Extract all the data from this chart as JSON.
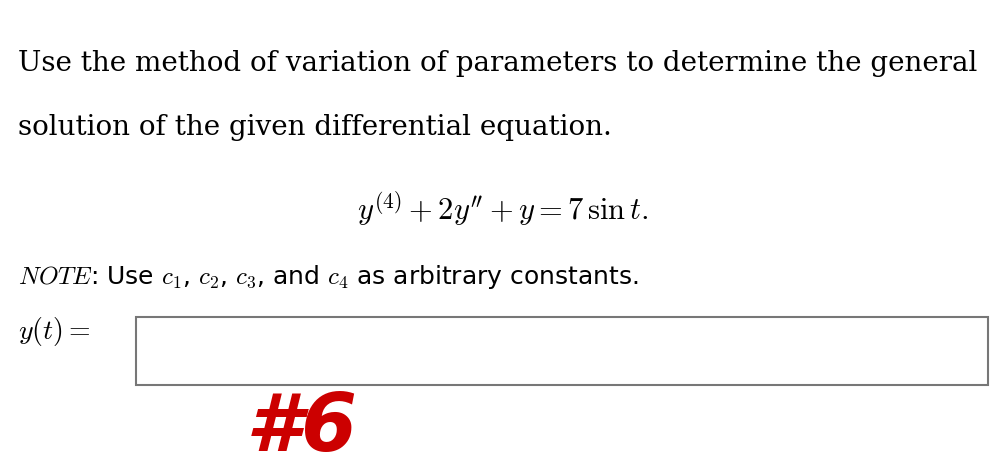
{
  "bg_color": "#ffffff",
  "text_color": "#000000",
  "red_color": "#cc0000",
  "line1": "Use the method of variation of parameters to determine the general",
  "line2": "solution of the given differential equation.",
  "equation": "$y^{(4)} + 2y'' + y = 7\\,\\sin t.$",
  "note_italic": "NOTE",
  "note_rest": ": Use $c_1$, $c_2$, $c_3$, and $c_4$ as arbitrary constants.",
  "yt_label": "$y(t) =$",
  "hashtag6": "#6",
  "main_fontsize": 20,
  "eq_fontsize": 22,
  "note_fontsize": 18,
  "yt_fontsize": 20,
  "hash_fontsize": 58,
  "fig_width": 10.05,
  "fig_height": 4.73,
  "dpi": 100
}
